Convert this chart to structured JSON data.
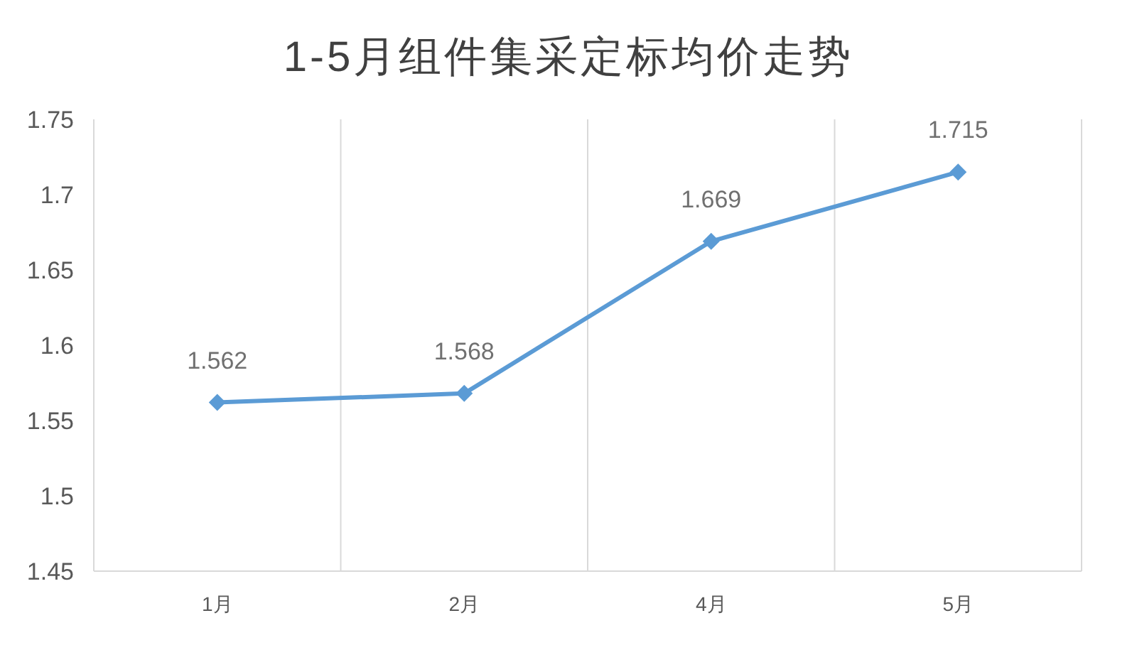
{
  "chart_data": {
    "type": "line",
    "title": "1-5月组件集采定标均价走势",
    "categories": [
      "1月",
      "2月",
      "4月",
      "5月"
    ],
    "series": [
      {
        "color": "#5b9bd5",
        "values": [
          1.562,
          1.568,
          1.669,
          1.715
        ]
      }
    ],
    "ylim": [
      1.45,
      1.75
    ],
    "yticks": [
      1.45,
      1.5,
      1.55,
      1.6,
      1.65,
      1.7,
      1.75
    ],
    "grid": "x",
    "marker": "diamond",
    "line_style": "solid",
    "data_labels": true
  }
}
